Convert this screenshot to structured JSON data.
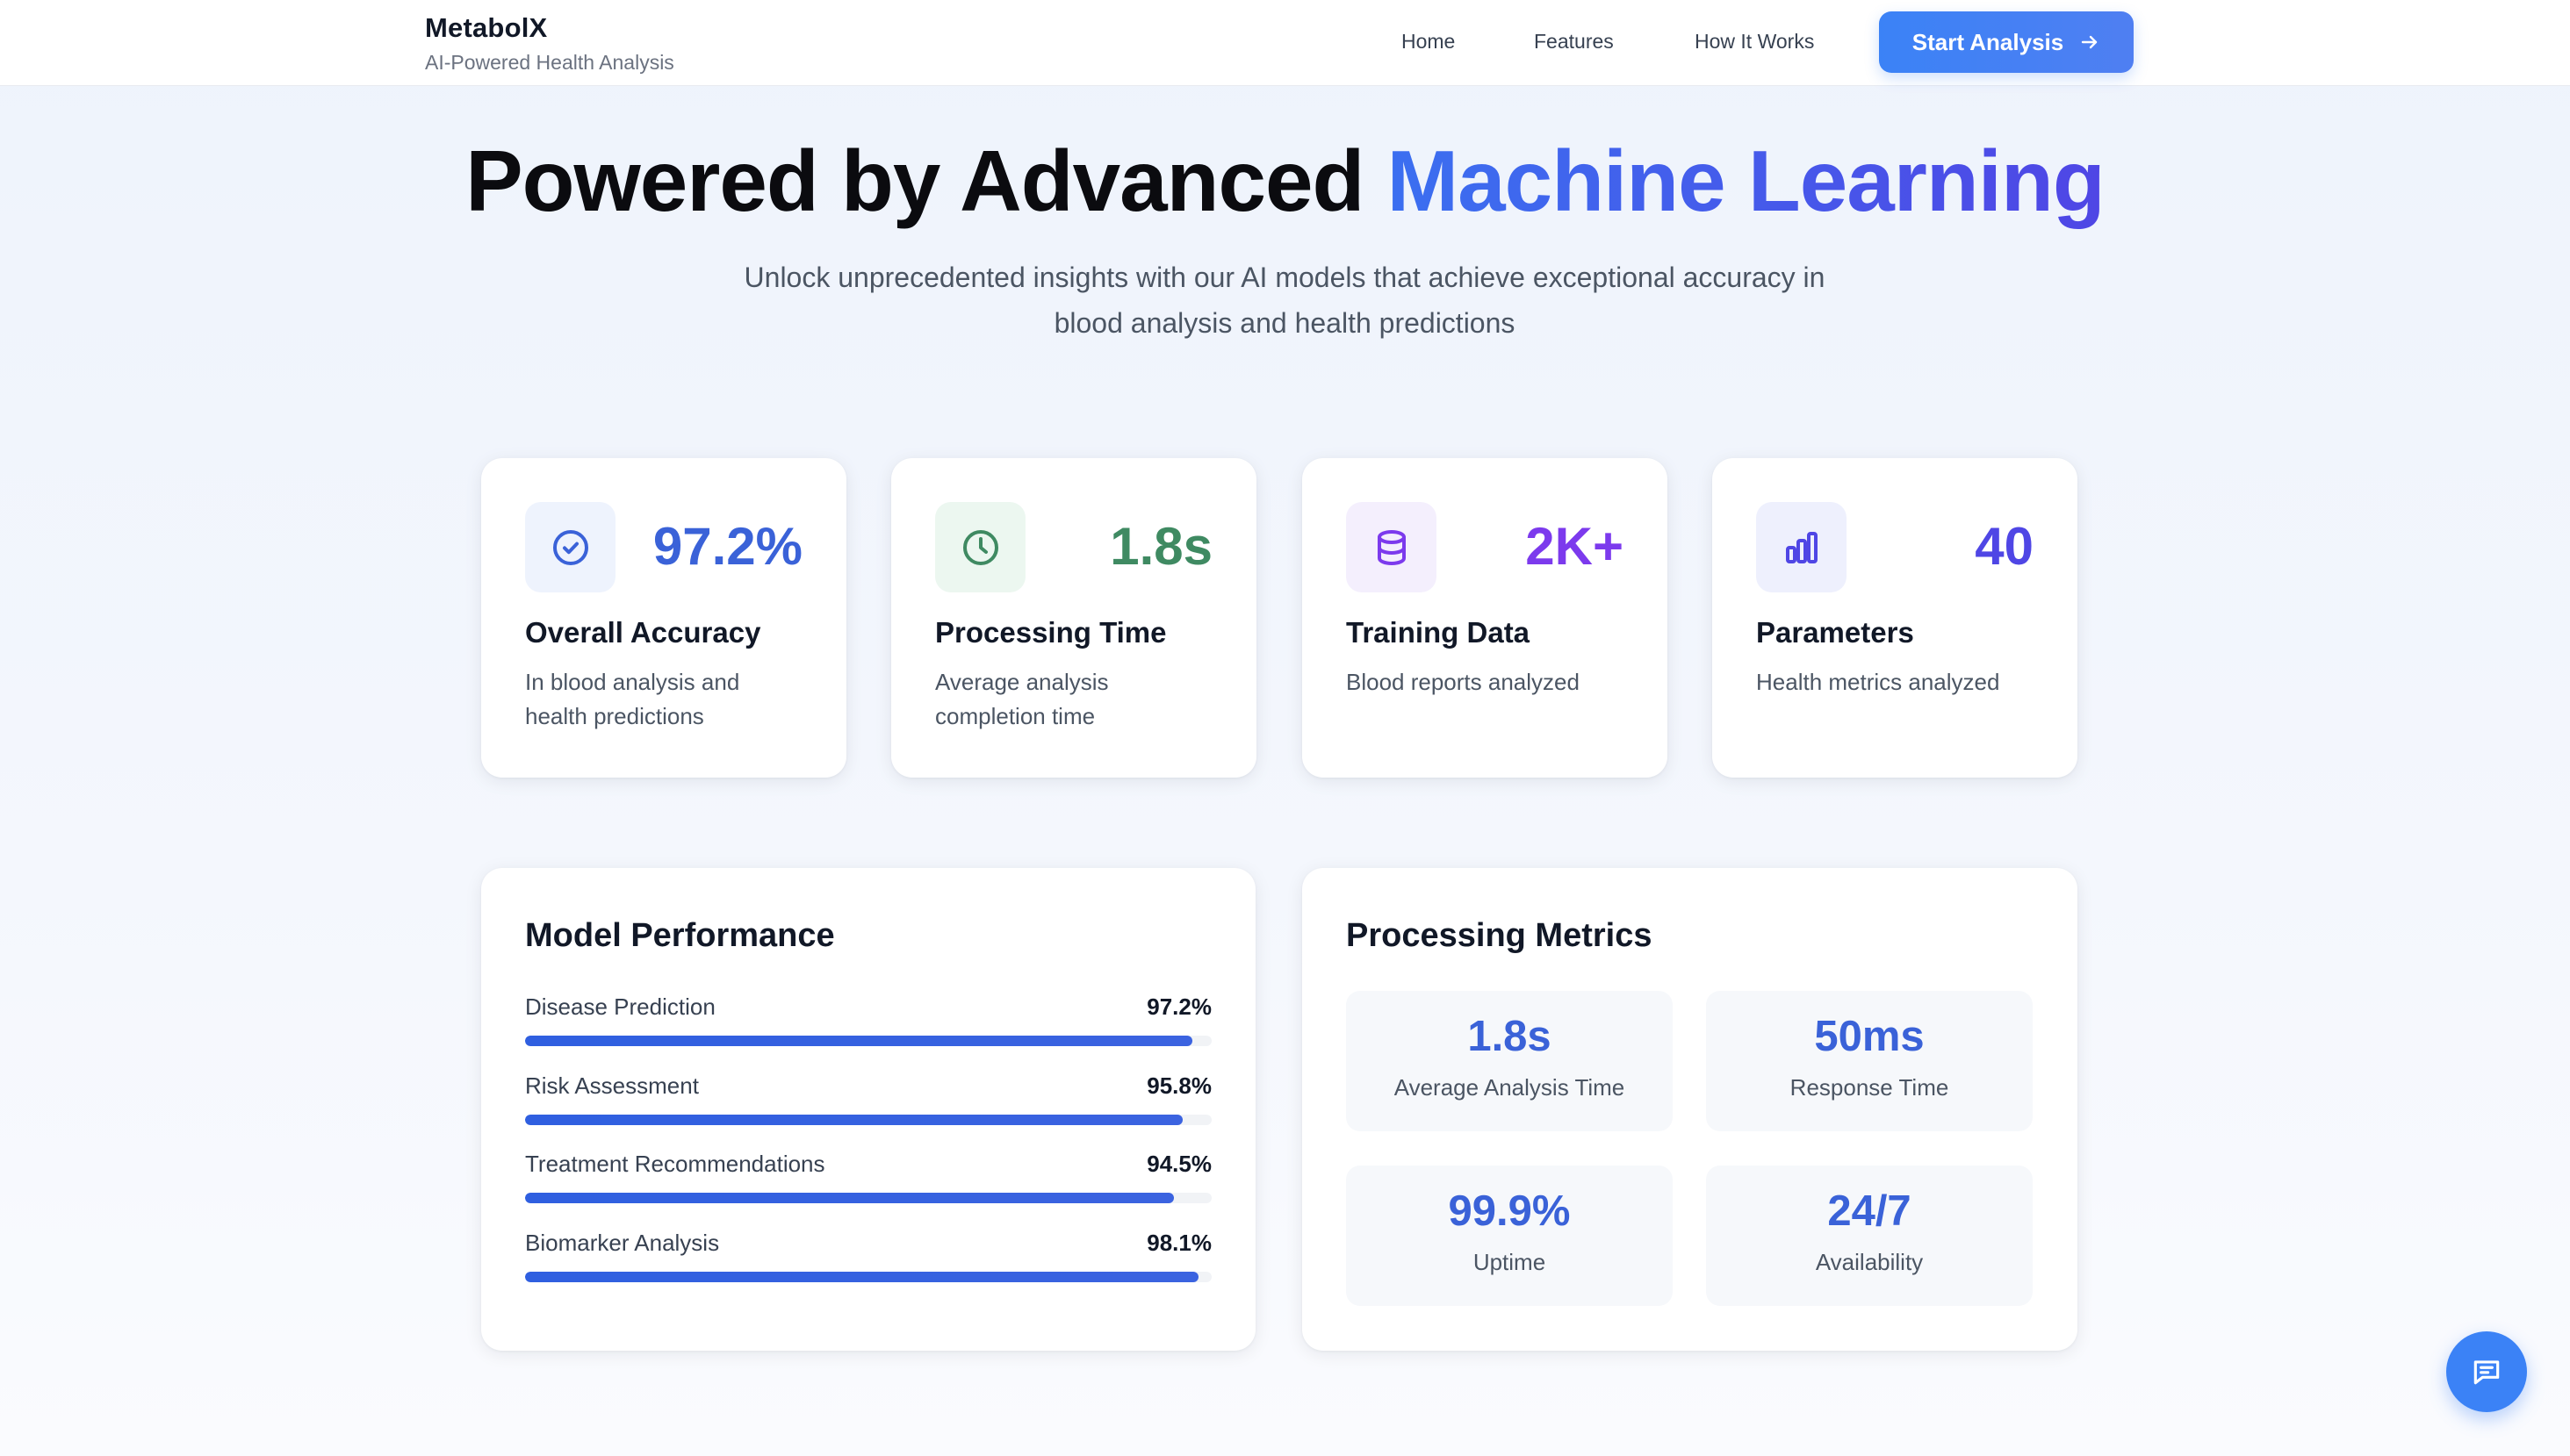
{
  "nav": {
    "brand_name": "MetabolX",
    "brand_tagline": "AI-Powered Health Analysis",
    "links": [
      "Home",
      "Features",
      "How It Works"
    ],
    "cta_label": "Start Analysis",
    "cta_icon": "arrow-right-icon"
  },
  "hero": {
    "title_prefix": "Powered by Advanced ",
    "title_accent": "Machine Learning",
    "subtitle": "Unlock unprecedented insights with our AI models that achieve exceptional accuracy in blood analysis and health predictions"
  },
  "stats": [
    {
      "value": "97.2%",
      "title": "Overall Accuracy",
      "description": "In blood analysis and health predictions",
      "icon": "check-circle-icon",
      "color": "#3a62d8",
      "icon_bg": "#eef3fd"
    },
    {
      "value": "1.8s",
      "title": "Processing Time",
      "description": "Average analysis completion time",
      "icon": "clock-icon",
      "color": "#3f8a62",
      "icon_bg": "#ecf7f0"
    },
    {
      "value": "2K+",
      "title": "Training Data",
      "description": "Blood reports analyzed",
      "icon": "database-icon",
      "color": "#7c3aed",
      "icon_bg": "#f4effd"
    },
    {
      "value": "40",
      "title": "Parameters",
      "description": "Health metrics analyzed",
      "icon": "bar-chart-icon",
      "color": "#4f46e5",
      "icon_bg": "#eef0fd"
    }
  ],
  "performance": {
    "title": "Model Performance",
    "items": [
      {
        "label": "Disease Prediction",
        "value": "97.2%",
        "percent": 97.2
      },
      {
        "label": "Risk Assessment",
        "value": "95.8%",
        "percent": 95.8
      },
      {
        "label": "Treatment Recommendations",
        "value": "94.5%",
        "percent": 94.5
      },
      {
        "label": "Biomarker Analysis",
        "value": "98.1%",
        "percent": 98.1
      }
    ]
  },
  "processing": {
    "title": "Processing Metrics",
    "metrics": [
      {
        "value": "1.8s",
        "label": "Average Analysis Time"
      },
      {
        "value": "50ms",
        "label": "Response Time"
      },
      {
        "value": "99.9%",
        "label": "Uptime"
      },
      {
        "value": "24/7",
        "label": "Availability"
      }
    ]
  },
  "chat_button": {
    "icon": "chat-bubble-icon"
  },
  "colors": {
    "primary": "#3b82f6",
    "accent_gradient_start": "#3b6ff0",
    "accent_gradient_end": "#4f46e5"
  }
}
